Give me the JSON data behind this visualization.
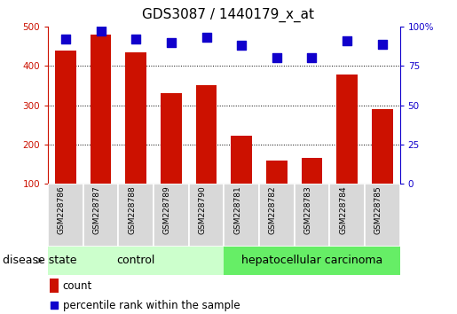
{
  "title": "GDS3087 / 1440179_x_at",
  "samples": [
    "GSM228786",
    "GSM228787",
    "GSM228788",
    "GSM228789",
    "GSM228790",
    "GSM228781",
    "GSM228782",
    "GSM228783",
    "GSM228784",
    "GSM228785"
  ],
  "counts": [
    440,
    480,
    435,
    330,
    352,
    222,
    158,
    165,
    378,
    290
  ],
  "percentiles": [
    92,
    97,
    92,
    90,
    93,
    88,
    80,
    80,
    91,
    89
  ],
  "bar_color": "#cc1100",
  "dot_color": "#1100cc",
  "left_ylim": [
    100,
    500
  ],
  "left_yticks": [
    100,
    200,
    300,
    400,
    500
  ],
  "right_ylim": [
    0,
    100
  ],
  "right_yticks": [
    0,
    25,
    50,
    75,
    100
  ],
  "right_yticklabels": [
    "0",
    "25",
    "50",
    "75",
    "100%"
  ],
  "left_tick_color": "#cc1100",
  "right_tick_color": "#1100cc",
  "grid_lines": [
    200,
    300,
    400
  ],
  "control_color": "#ccffcc",
  "hcc_color": "#66ee66",
  "control_label": "control",
  "hcc_label": "hepatocellular carcinoma",
  "disease_state_label": "disease state",
  "legend_count_label": "count",
  "legend_pct_label": "percentile rank within the sample",
  "title_fontsize": 11,
  "tick_fontsize": 7.5,
  "sample_fontsize": 6.5,
  "group_fontsize": 9,
  "legend_fontsize": 8.5,
  "disease_fontsize": 9,
  "bar_width": 0.6,
  "dot_size": 45,
  "n_control": 5,
  "n_total": 10
}
